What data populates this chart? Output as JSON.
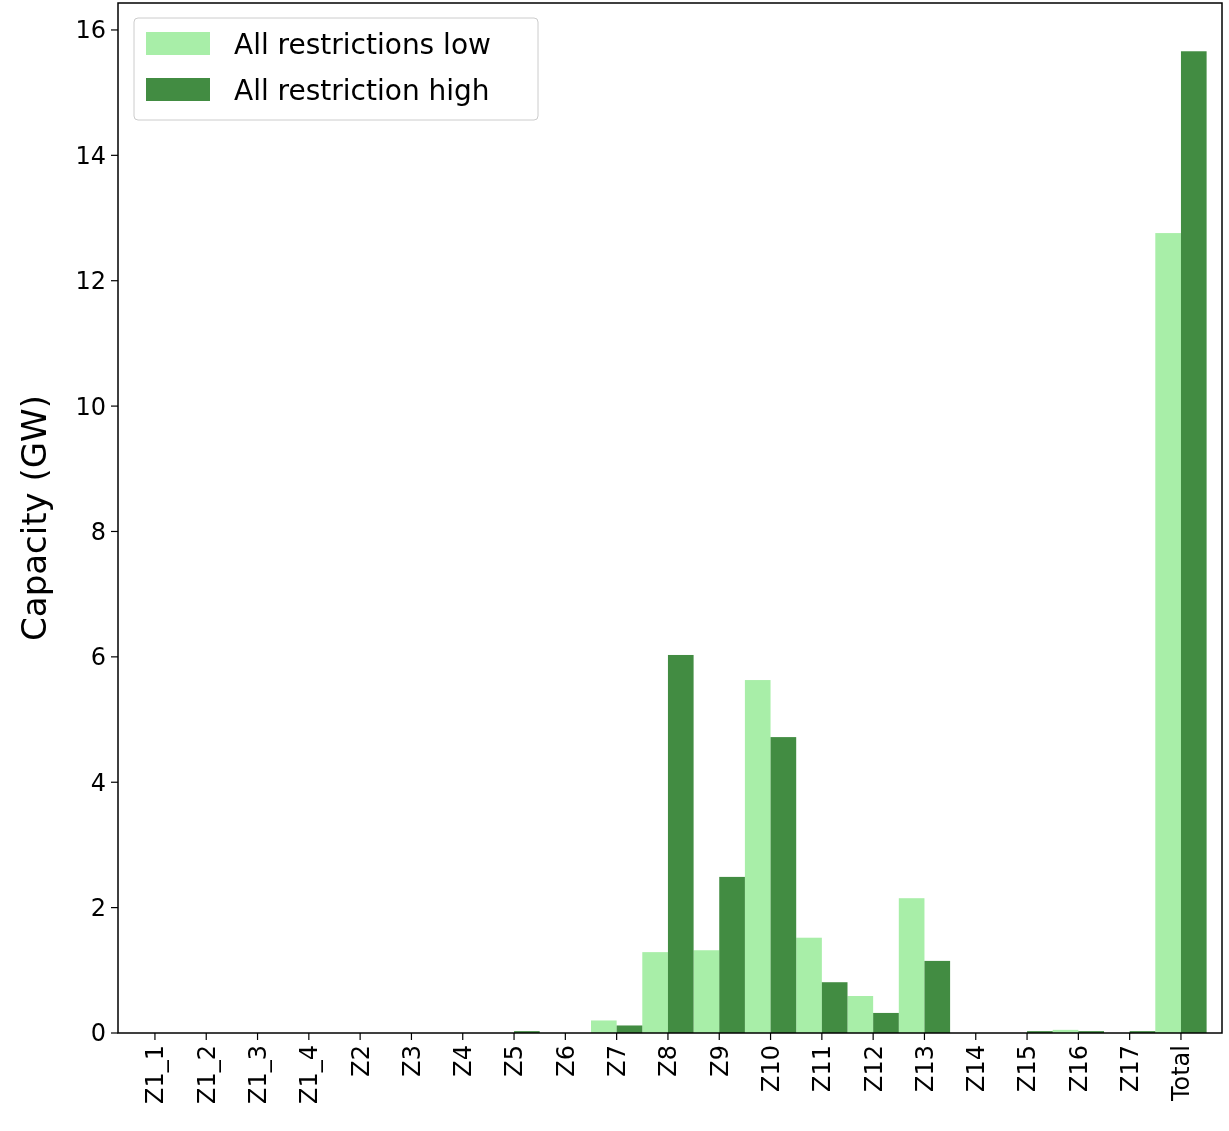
{
  "chart_data": {
    "type": "bar",
    "ylabel": "Capacity (GW)",
    "categories": [
      "Z1_1",
      "Z1_2",
      "Z1_3",
      "Z1_4",
      "Z2",
      "Z3",
      "Z4",
      "Z5",
      "Z6",
      "Z7",
      "Z8",
      "Z9",
      "Z10",
      "Z11",
      "Z12",
      "Z13",
      "Z14",
      "Z15",
      "Z16",
      "Z17",
      "Total"
    ],
    "series": [
      {
        "name": "All restrictions low",
        "color": "#a8eea8",
        "values": [
          0,
          0,
          0,
          0,
          0,
          0,
          0,
          0,
          0,
          0.2,
          1.29,
          1.32,
          5.63,
          1.52,
          0.59,
          2.15,
          0,
          null,
          0.05,
          null,
          12.76
        ]
      },
      {
        "name": "All restriction high",
        "color": "#428c42",
        "values": [
          0,
          0,
          0,
          0,
          0,
          0,
          0,
          0.03,
          0,
          0.12,
          6.03,
          2.49,
          4.72,
          0.81,
          0.32,
          1.15,
          0,
          0.03,
          0.03,
          0.03,
          15.66
        ]
      }
    ],
    "ylim": [
      0,
      16.43
    ],
    "yticks": [
      0,
      2,
      4,
      6,
      8,
      10,
      12,
      14,
      16
    ],
    "grid": false,
    "legend": "top left"
  }
}
